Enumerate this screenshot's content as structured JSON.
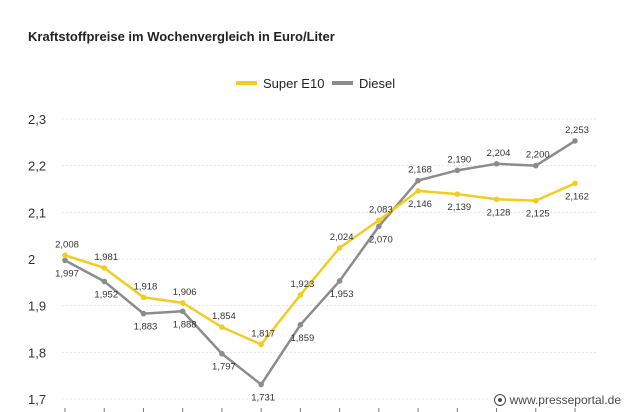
{
  "chart_data": {
    "type": "line",
    "title": "Kraftstoffpreise im Wochenvergleich in Euro/Liter",
    "ylim": [
      1.7,
      2.3
    ],
    "yticks": [
      "1,7",
      "1,8",
      "1,9",
      "2",
      "2,1",
      "2,2",
      "2,3"
    ],
    "grid": true,
    "legend_position": "top-center",
    "series": [
      {
        "name": "Super E10",
        "color": "#f2cd1f",
        "values": [
          2.008,
          1.981,
          1.918,
          1.906,
          1.854,
          1.817,
          1.923,
          2.024,
          2.083,
          2.146,
          2.139,
          2.128,
          2.125,
          2.162
        ],
        "labels": [
          "2,008",
          "1,981",
          "1,918",
          "1,906",
          "1,854",
          "1,817",
          "1,923",
          "2,024",
          "2,083",
          "2,146",
          "2,139",
          "2,128",
          "2,125",
          "2,162"
        ]
      },
      {
        "name": "Diesel",
        "color": "#8c8c8c",
        "values": [
          1.997,
          1.952,
          1.883,
          1.888,
          1.797,
          1.731,
          1.859,
          1.953,
          2.07,
          2.168,
          2.19,
          2.204,
          2.2,
          2.253
        ],
        "labels": [
          "1,997",
          "1,952",
          "1,883",
          "1,888",
          "1,797",
          "1,731",
          "1,859",
          "1,953",
          "2,070",
          "2,168",
          "2,190",
          "2,204",
          "2,200",
          "2,253"
        ]
      }
    ]
  },
  "watermark": "www.presseportal.de"
}
